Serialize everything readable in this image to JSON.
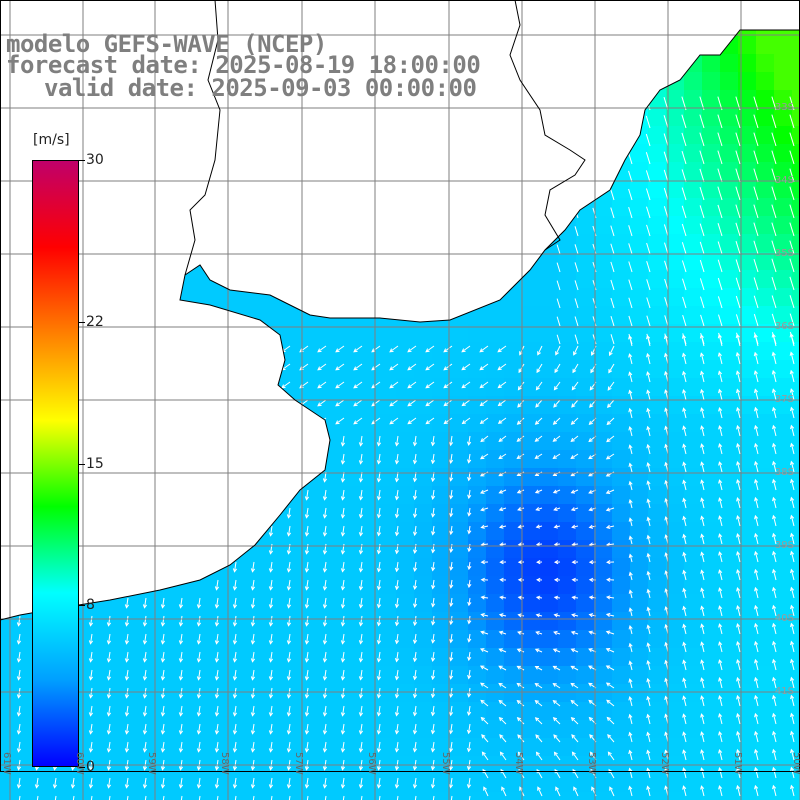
{
  "title": {
    "line1": "modelo GEFS-WAVE (NCEP)",
    "line2": "forecast date: 2025-08-19 18:00:00",
    "line3": "valid date: 2025-09-03 00:00:00"
  },
  "colorbar": {
    "units": "[m/s]",
    "min": 0,
    "max": 30,
    "tick_labels": [
      "30",
      "22",
      "15",
      "8",
      "0"
    ],
    "tick_values": [
      30,
      22,
      15,
      8,
      0
    ],
    "colors": [
      "#0000ff",
      "#00a0ff",
      "#00ffff",
      "#00ff00",
      "#ffff00",
      "#ff8000",
      "#ff0000",
      "#c0006a"
    ]
  },
  "map": {
    "lon_labels": [
      "61W",
      "60W",
      "59W",
      "58W",
      "57W",
      "56W",
      "55W",
      "54W",
      "53W",
      "52W",
      "51W",
      "50W"
    ],
    "lat_labels": [
      "33S",
      "34S",
      "35S",
      "36S",
      "37S",
      "38S",
      "39S",
      "40S",
      "41S"
    ],
    "land_color": "#ffffff",
    "coast_color": "#000000",
    "grid_color": "#7f7f7f",
    "arrow_color": "#ffffff"
  }
}
